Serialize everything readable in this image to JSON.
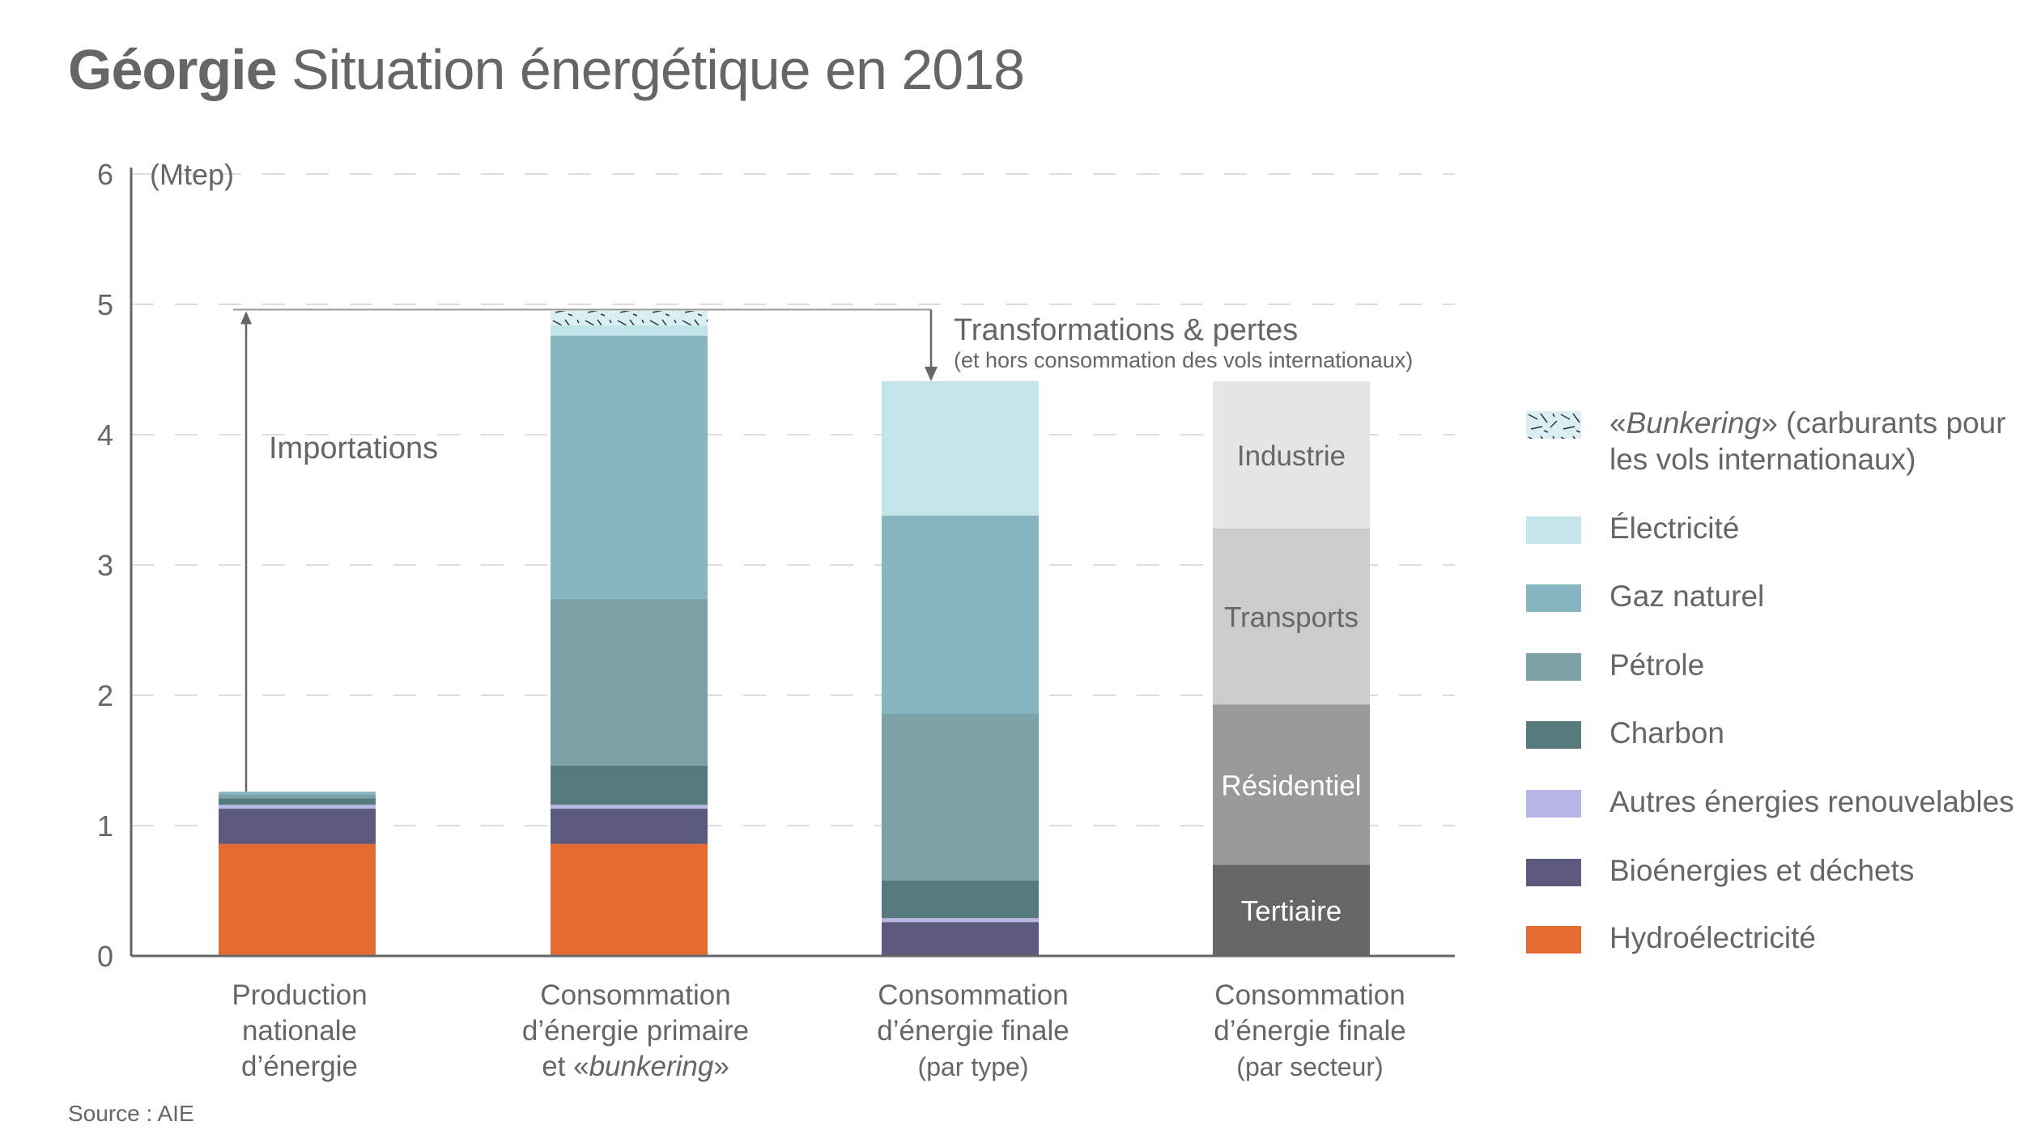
{
  "title": {
    "country": "Géorgie",
    "rest": "Situation énergétique en 2018"
  },
  "source": "Source : AIE",
  "annotations": {
    "imports": "Importations",
    "transformations": "Transformations & pertes",
    "transformations_sub": "(et hors consommation des vols internationaux)"
  },
  "category_labels": [
    {
      "lines": [
        "Production",
        "nationale",
        "d’énergie"
      ],
      "sub": ""
    },
    {
      "lines": [
        "Consommation",
        "d’énergie primaire"
      ],
      "last_prefix": "et «",
      "last_italic": "bunkering",
      "last_suffix": "»",
      "sub": ""
    },
    {
      "lines": [
        "Consommation",
        "d’énergie finale"
      ],
      "sub": "(par type)"
    },
    {
      "lines": [
        "Consommation",
        "d’énergie finale"
      ],
      "sub": "(par secteur)"
    }
  ],
  "legend": [
    {
      "key": "bunkering",
      "label_prefix": "«",
      "label_italic": "Bunkering",
      "label_suffix": "» (carburants pour",
      "label_line2": "les vols internationaux)",
      "color": "#d9eff3",
      "pattern": true
    },
    {
      "key": "electricite",
      "label": "Électricité",
      "color": "#c3e4ea"
    },
    {
      "key": "gaz",
      "label": "Gaz naturel",
      "color": "#87b6c1"
    },
    {
      "key": "petrole",
      "label": "Pétrole",
      "color": "#7aa2a7"
    },
    {
      "key": "charbon",
      "label": "Charbon",
      "color": "#55797c"
    },
    {
      "key": "autres",
      "label": "Autres énergies renouvelables",
      "color": "#b7b6e6"
    },
    {
      "key": "bio",
      "label": "Bioénergies et déchets",
      "color": "#5d5a80"
    },
    {
      "key": "hydro",
      "label": "Hydroélectricité",
      "color": "#e46c33"
    }
  ],
  "chart_data": {
    "type": "bar",
    "stacked": true,
    "title": "Géorgie Situation énergétique en 2018",
    "ylabel": "(Mtep)",
    "ylim": [
      0,
      6
    ],
    "yticks": [
      0,
      1,
      2,
      3,
      4,
      5,
      6
    ],
    "grid": true,
    "legend_position": "right",
    "categories": [
      "Production nationale d’énergie",
      "Consommation d’énergie primaire et « bunkering »",
      "Consommation d’énergie finale (par type)",
      "Consommation d’énergie finale (par secteur)"
    ],
    "series": [
      {
        "name": "Hydroélectricité",
        "key": "hydro",
        "values": [
          0.86,
          0.86,
          0,
          0
        ]
      },
      {
        "name": "Bioénergies et déchets",
        "key": "bio",
        "values": [
          0.27,
          0.27,
          0.26,
          0
        ]
      },
      {
        "name": "Autres énergies renouvelables",
        "key": "autres",
        "values": [
          0.03,
          0.03,
          0.03,
          0
        ]
      },
      {
        "name": "Charbon",
        "key": "charbon",
        "values": [
          0.05,
          0.3,
          0.29,
          0
        ]
      },
      {
        "name": "Pétrole",
        "key": "petrole",
        "values": [
          0.03,
          1.28,
          1.28,
          0
        ]
      },
      {
        "name": "Gaz naturel",
        "key": "gaz",
        "values": [
          0.02,
          2.02,
          1.52,
          0
        ]
      },
      {
        "name": "Électricité",
        "key": "electricite",
        "values": [
          0,
          0.08,
          1.03,
          0
        ]
      },
      {
        "name": "« Bunkering » (carburants pour les vols internationaux)",
        "key": "bunkering",
        "values": [
          0,
          0.11,
          0,
          0
        ]
      },
      {
        "name": "Tertiaire",
        "key": "tertiaire",
        "values": [
          0,
          0,
          0,
          0.7
        ],
        "color": "#666666",
        "label_color": "#ffffff"
      },
      {
        "name": "Résidentiel",
        "key": "residentiel",
        "values": [
          0,
          0,
          0,
          1.23
        ],
        "color": "#999999",
        "label_color": "#ffffff"
      },
      {
        "name": "Transports",
        "key": "transports",
        "values": [
          0,
          0,
          0,
          1.35
        ],
        "color": "#cccccc",
        "label_color": "#666666"
      },
      {
        "name": "Industrie",
        "key": "industrie",
        "values": [
          0,
          0,
          0,
          1.13
        ],
        "color": "#e5e5e5",
        "label_color": "#666666"
      }
    ],
    "annotations": [
      {
        "text": "Importations",
        "type": "arrow-up",
        "from_value": 1.26,
        "to_value": 4.96
      },
      {
        "text": "Transformations & pertes",
        "subtext": "(et hors consommation des vols internationaux)",
        "type": "arrow-down",
        "from_value": 4.96,
        "to_value": 4.41
      }
    ]
  }
}
